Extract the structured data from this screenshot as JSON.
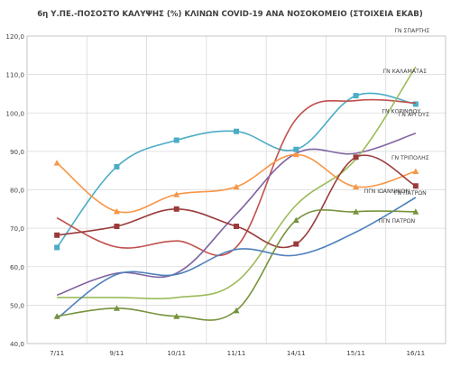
{
  "chart_data": {
    "type": "line",
    "title": "6η Υ.ΠΕ.-ΠΟΣΟΣΤΟ ΚΑΛΥΨΗΣ (%) ΚΛΙΝΩΝ COVID-19 ΑΝΑ ΝΟΣΟΚΟΜΕΙΟ (ΣΤΟΙΧΕΙΑ ΕΚΑΒ)",
    "xlabel": "",
    "ylabel": "",
    "categories": [
      "7/11",
      "9/11",
      "10/11",
      "11/11",
      "14/11",
      "15/11",
      "16/11"
    ],
    "ylim": [
      40,
      120
    ],
    "yticks": [
      "40,0",
      "50,0",
      "60,0",
      "70,0",
      "80,0",
      "90,0",
      "100,0",
      "110,0",
      "120,0"
    ],
    "grid": true,
    "series": [
      {
        "name": "ΓΝ ΚΟΡΙΝΘΟΥ",
        "color": "#4bacc6",
        "marker": "square",
        "values": [
          65.0,
          86.0,
          92.9,
          95.2,
          90.5,
          104.5,
          102.3
        ]
      },
      {
        "name": "ΓΝ ΚΑΛΑΜΑΤΑΣ",
        "color": "#c0504d",
        "marker": "none",
        "values": [
          72.7,
          65.1,
          66.7,
          65.1,
          98.4,
          103.2,
          102.6
        ]
      },
      {
        "name": "ΓΝ ΑΡΓΟΥΣ",
        "color": "#8064a2",
        "marker": "none",
        "values": [
          52.6,
          58.3,
          58.3,
          73.7,
          89.5,
          89.5,
          94.7
        ]
      },
      {
        "name": "ΓΝ ΣΠΑΡΤΗΣ",
        "color": "#9bbb59",
        "marker": "none",
        "values": [
          52.0,
          52.0,
          52.0,
          56.0,
          76.0,
          88.0,
          112.0
        ]
      },
      {
        "name": "ΓΝ ΤΡΙΠΟΛΗΣ",
        "color": "#f79646",
        "marker": "triangle",
        "values": [
          87.0,
          74.4,
          78.8,
          80.8,
          89.2,
          80.8,
          84.8
        ]
      },
      {
        "name": "ΓΝ ΠΑΤΡΩΝ",
        "color": "#9b3b3b",
        "marker": "square",
        "values": [
          68.2,
          70.5,
          75.0,
          70.5,
          65.9,
          88.5,
          81.0
        ]
      },
      {
        "name": "ΠΓΝ ΙΩΑΝΝΙΝΩΝ",
        "color": "#4f81bd",
        "marker": "none",
        "values": [
          46.5,
          58.0,
          58.0,
          64.5,
          63.0,
          69.0,
          78.0
        ]
      },
      {
        "name": "ΠΓΝ ΠΑΤΡΩΝ",
        "color": "#77933c",
        "marker": "triangle",
        "values": [
          47.1,
          49.2,
          47.1,
          48.6,
          72.1,
          74.3,
          74.3
        ]
      }
    ]
  }
}
